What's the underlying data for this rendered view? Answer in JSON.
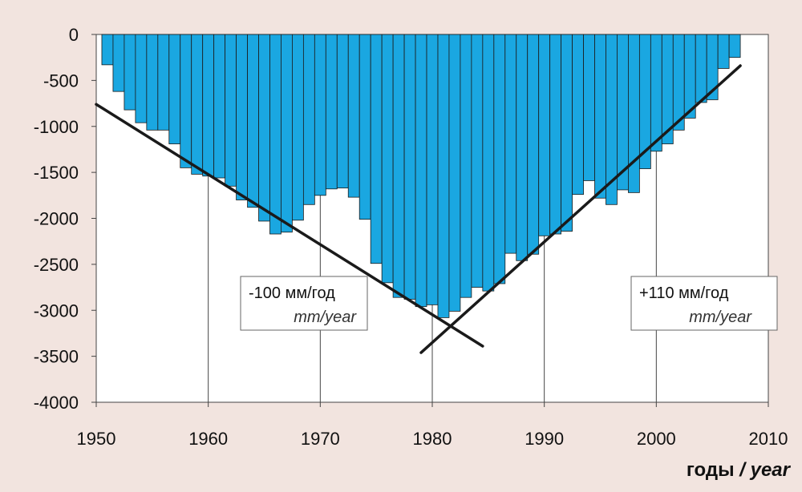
{
  "chart_data": {
    "type": "bar",
    "x": [
      1951,
      1952,
      1953,
      1954,
      1955,
      1956,
      1957,
      1958,
      1959,
      1960,
      1961,
      1962,
      1963,
      1964,
      1965,
      1966,
      1967,
      1968,
      1969,
      1970,
      1971,
      1972,
      1973,
      1974,
      1975,
      1976,
      1977,
      1978,
      1979,
      1980,
      1981,
      1982,
      1983,
      1984,
      1985,
      1986,
      1987,
      1988,
      1989,
      1990,
      1991,
      1992,
      1993,
      1994,
      1995,
      1996,
      1997,
      1998,
      1999,
      2000,
      2001,
      2002,
      2003,
      2004,
      2005,
      2006,
      2007
    ],
    "values": [
      -330,
      -620,
      -820,
      -960,
      -1040,
      -1040,
      -1190,
      -1450,
      -1520,
      -1540,
      -1560,
      -1650,
      -1800,
      -1880,
      -2030,
      -2170,
      -2150,
      -2020,
      -1850,
      -1750,
      -1680,
      -1670,
      -1770,
      -2010,
      -2490,
      -2700,
      -2860,
      -2880,
      -2960,
      -2940,
      -3080,
      -3010,
      -2860,
      -2750,
      -2790,
      -2710,
      -2380,
      -2460,
      -2390,
      -2190,
      -2170,
      -2140,
      -1740,
      -1590,
      -1780,
      -1850,
      -1690,
      -1720,
      -1460,
      -1270,
      -1190,
      -1040,
      -910,
      -740,
      -710,
      -370,
      -250
    ],
    "xlim": [
      1950,
      2010
    ],
    "ylim": [
      -4000,
      0
    ],
    "x_ticks": [
      "1950",
      "1960",
      "1970",
      "1980",
      "1990",
      "2000",
      "2010"
    ],
    "y_ticks": [
      "0",
      "-500",
      "-1000",
      "-1500",
      "-2000",
      "-2500",
      "-3000",
      "-3500",
      "-4000"
    ],
    "xlabel": "годы",
    "xlabel_en": "year",
    "xlabel_sep": "/",
    "grid": "vertical",
    "bar_color": "#1aa7e1",
    "trend_lines": [
      {
        "from": [
          1950.0,
          -760
        ],
        "to": [
          1984.5,
          -3390
        ],
        "label": "-100 мм/год",
        "label_en": "mm/year"
      },
      {
        "from": [
          1979.0,
          -3460
        ],
        "to": [
          2007.5,
          -340
        ],
        "label": "+110 мм/год",
        "label_en": "mm/year"
      }
    ]
  }
}
